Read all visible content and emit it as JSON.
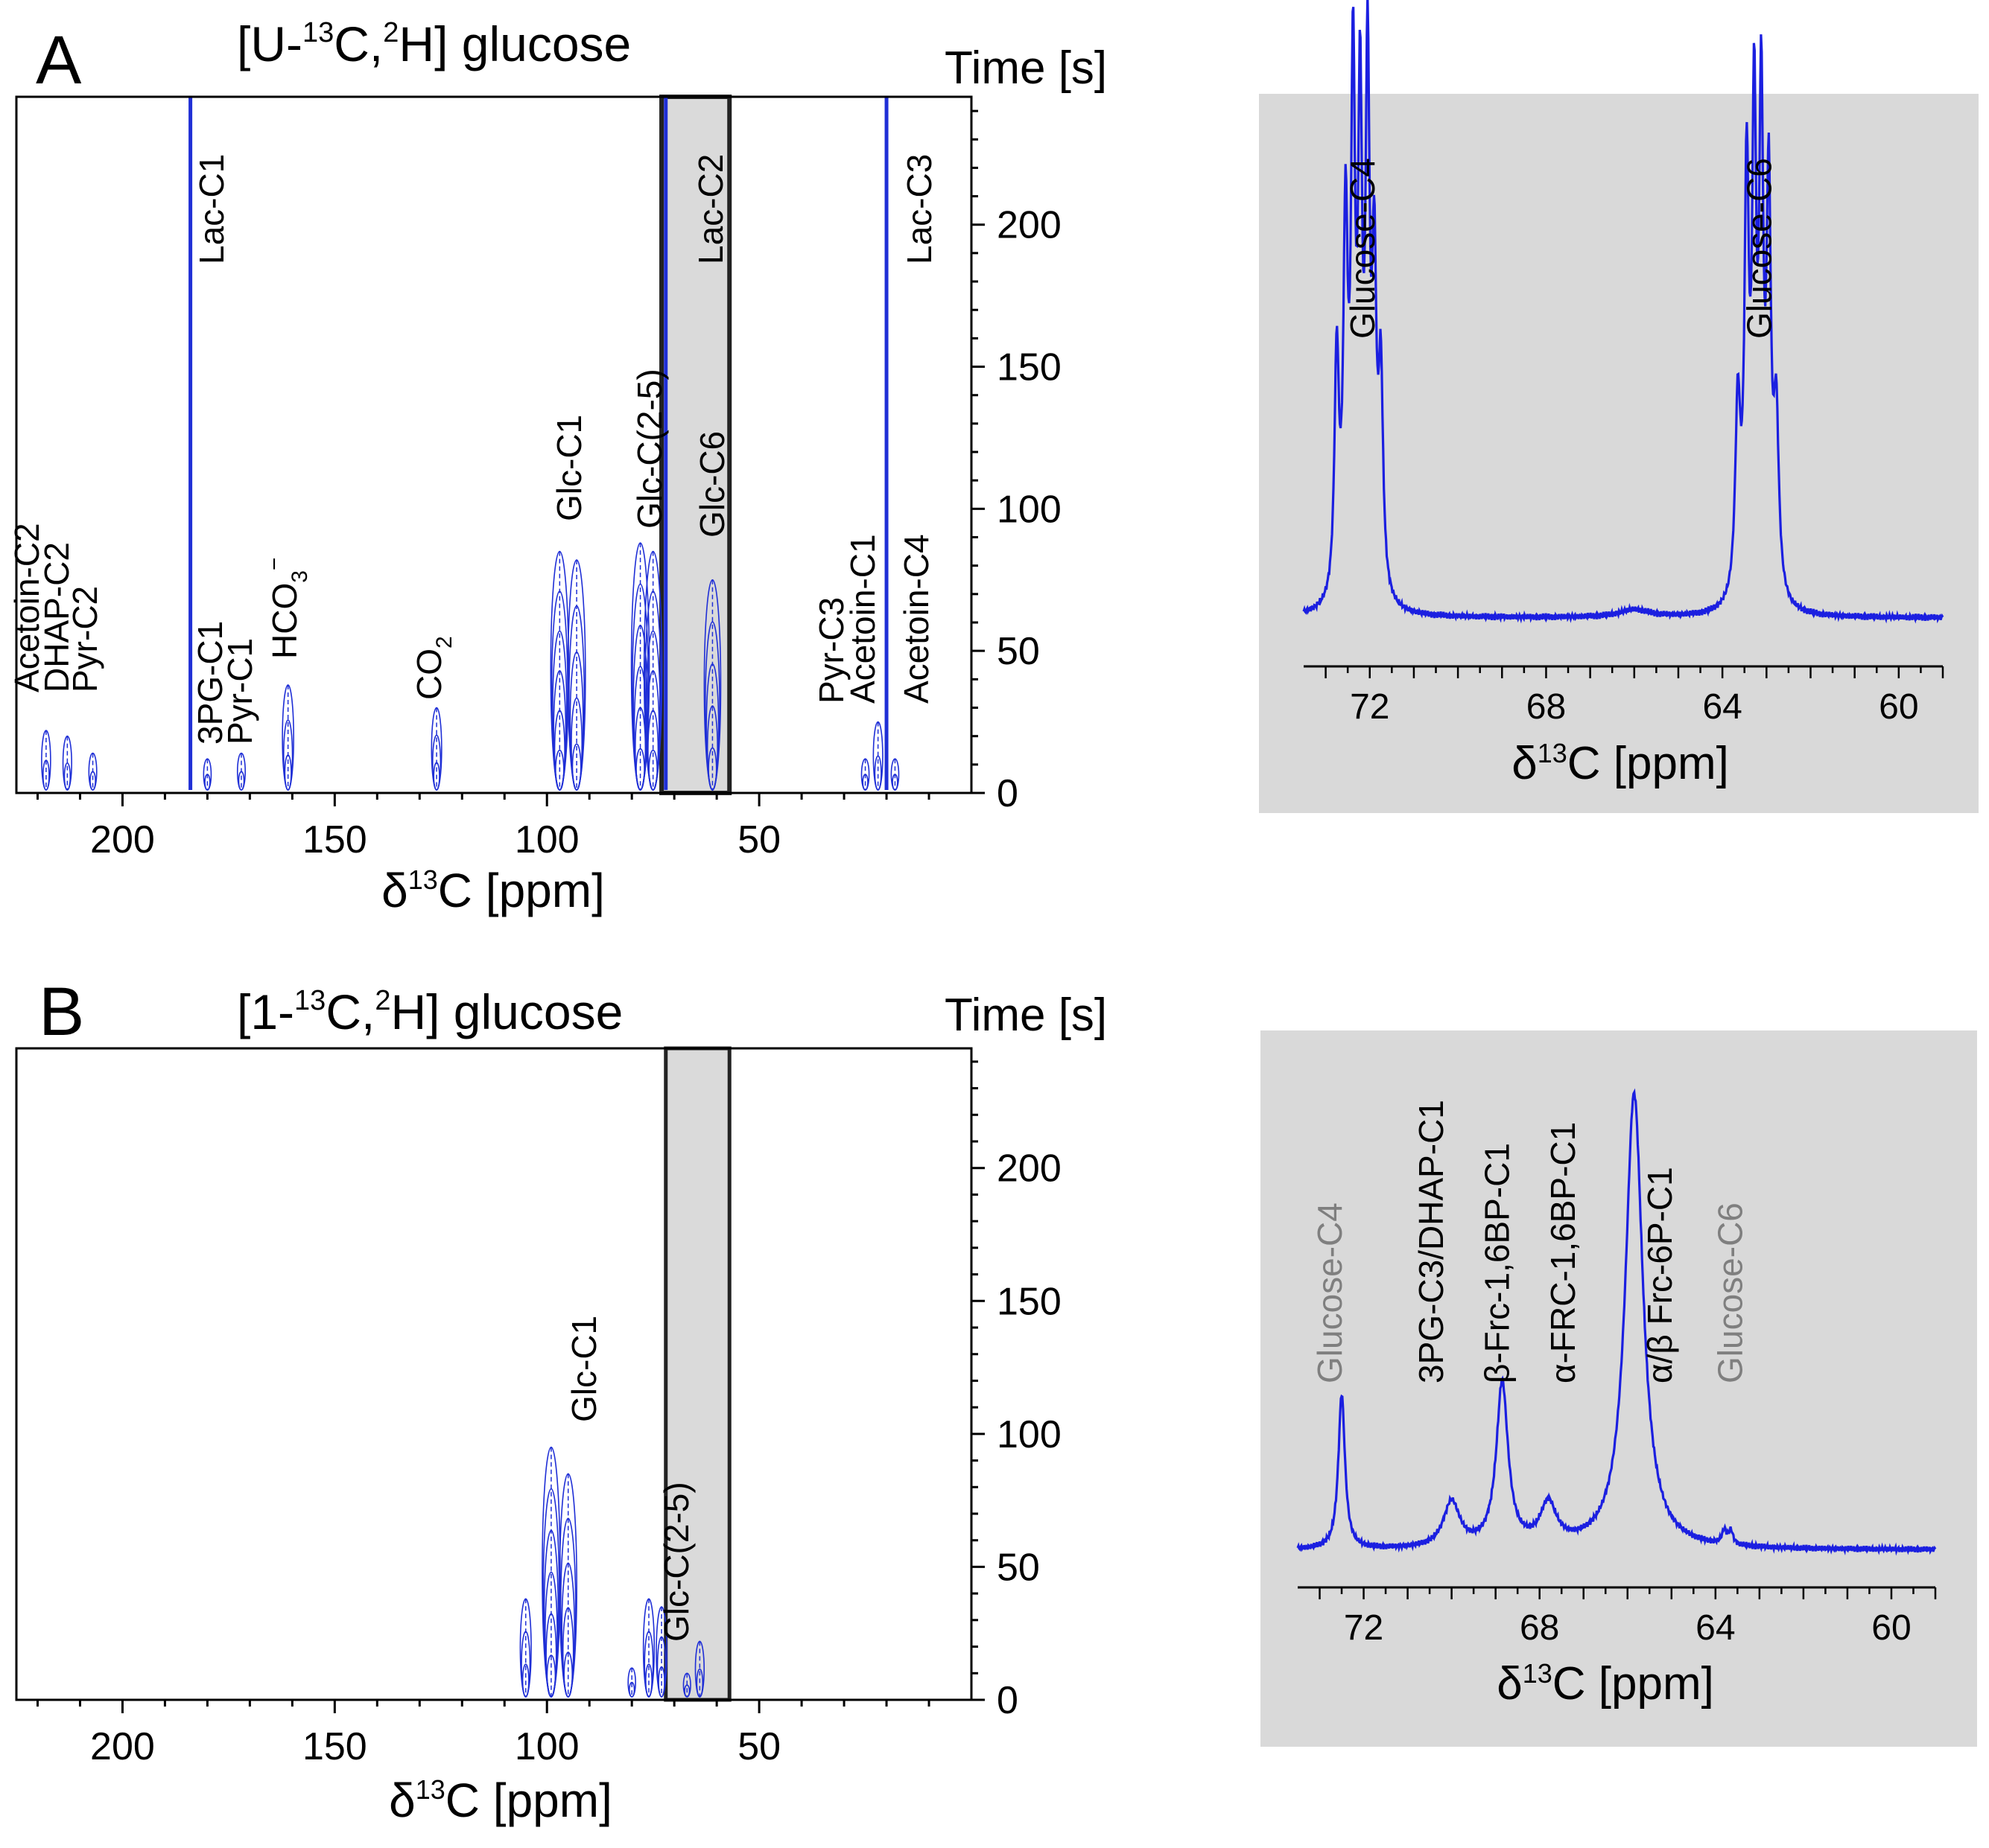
{
  "chart_data": [
    {
      "id": "A-main",
      "type": "scatter",
      "panel_letter": "A",
      "title": {
        "pre": "[U-",
        "sup1": "13",
        "mid": "C,",
        "sup2": "2",
        "post": "H] glucose"
      },
      "ylabel": "Time [s]",
      "xlabel": {
        "pre": "δ",
        "sup": "13",
        "post": "C [ppm]"
      },
      "xlim": [
        225,
        0
      ],
      "ylim": [
        0,
        245
      ],
      "xticks": [
        200,
        150,
        100,
        50
      ],
      "yticks": [
        0,
        50,
        100,
        150,
        200
      ],
      "highlight_ppm": [
        73,
        57
      ],
      "peaks": [
        {
          "ppm": 218,
          "tmax": 22,
          "label": "Acetoin-C2"
        },
        {
          "ppm": 213,
          "tmax": 20,
          "label": "DHAP-C2"
        },
        {
          "ppm": 207,
          "tmax": 14,
          "label": "Pyr-C2"
        },
        {
          "ppm": 184,
          "tmax": 245,
          "label": "Lac-C1"
        },
        {
          "ppm": 180,
          "tmax": 12,
          "label": "3PG-C1"
        },
        {
          "ppm": 172,
          "tmax": 14,
          "label": "Pyr-C1"
        },
        {
          "ppm": 161,
          "tmax": 38,
          "label": "HCO3-"
        },
        {
          "ppm": 126,
          "tmax": 30,
          "label": "CO2"
        },
        {
          "ppm": 97,
          "tmax": 85,
          "label": "Glc-C1"
        },
        {
          "ppm": 93,
          "tmax": 82,
          "label": "Glc-C1"
        },
        {
          "ppm": 78,
          "tmax": 88,
          "label": "Glc-C(2-5)"
        },
        {
          "ppm": 75,
          "tmax": 85,
          "label": "Glc-C(2-5)"
        },
        {
          "ppm": 72,
          "tmax": 245,
          "label": "Lac-C2"
        },
        {
          "ppm": 61,
          "tmax": 75,
          "label": "Glc-C6"
        },
        {
          "ppm": 25,
          "tmax": 12,
          "label": "Pyr-C3"
        },
        {
          "ppm": 22,
          "tmax": 25,
          "label": "Acetoin-C1"
        },
        {
          "ppm": 20,
          "tmax": 245,
          "label": "Lac-C3"
        },
        {
          "ppm": 18,
          "tmax": 12,
          "label": "Acetoin-C4"
        }
      ]
    },
    {
      "id": "A-inset",
      "type": "line",
      "xlabel": {
        "pre": "δ",
        "sup": "13",
        "post": "C [ppm]"
      },
      "xlim": [
        73.5,
        59
      ],
      "xticks": [
        72,
        68,
        64,
        60
      ],
      "labels": [
        {
          "text": "Glucose-C4",
          "ppm": 72.1,
          "color": "#000000"
        },
        {
          "text": "Glucose-C6",
          "ppm": 63.1,
          "color": "#000000"
        }
      ],
      "baseline": 0.04,
      "peaks": [
        {
          "center": 72.75,
          "height": 0.48,
          "width": 0.06
        },
        {
          "center": 72.55,
          "height": 0.72,
          "width": 0.06
        },
        {
          "center": 72.38,
          "height": 1.0,
          "width": 0.055
        },
        {
          "center": 72.22,
          "height": 0.92,
          "width": 0.055
        },
        {
          "center": 72.05,
          "height": 1.0,
          "width": 0.055
        },
        {
          "center": 71.9,
          "height": 0.62,
          "width": 0.06
        },
        {
          "center": 71.75,
          "height": 0.42,
          "width": 0.06
        },
        {
          "center": 63.65,
          "height": 0.38,
          "width": 0.07
        },
        {
          "center": 63.45,
          "height": 0.82,
          "width": 0.06
        },
        {
          "center": 63.28,
          "height": 0.92,
          "width": 0.055
        },
        {
          "center": 63.12,
          "height": 0.93,
          "width": 0.055
        },
        {
          "center": 62.95,
          "height": 0.78,
          "width": 0.06
        },
        {
          "center": 62.78,
          "height": 0.35,
          "width": 0.07
        },
        {
          "center": 66.0,
          "height": 0.015,
          "width": 0.4
        }
      ]
    },
    {
      "id": "B-main",
      "type": "scatter",
      "panel_letter": "B",
      "title": {
        "pre": "[1-",
        "sup1": "13",
        "mid": "C,",
        "sup2": "2",
        "post": "H] glucose"
      },
      "ylabel": "Time [s]",
      "xlabel": {
        "pre": "δ",
        "sup": "13",
        "post": "C [ppm]"
      },
      "xlim": [
        225,
        0
      ],
      "ylim": [
        0,
        245
      ],
      "xticks": [
        200,
        150,
        100,
        50
      ],
      "yticks": [
        0,
        50,
        100,
        150,
        200
      ],
      "highlight_ppm": [
        72,
        57
      ],
      "peaks": [
        {
          "ppm": 105,
          "tmax": 38,
          "label": ""
        },
        {
          "ppm": 99,
          "tmax": 95,
          "label": "Glc-C1"
        },
        {
          "ppm": 95,
          "tmax": 85,
          "label": "Glc-C1"
        },
        {
          "ppm": 80,
          "tmax": 12,
          "label": ""
        },
        {
          "ppm": 76,
          "tmax": 38,
          "label": "Glc-C(2-5)"
        },
        {
          "ppm": 73,
          "tmax": 35,
          "label": "Glc-C(2-5)"
        },
        {
          "ppm": 67,
          "tmax": 10,
          "label": ""
        },
        {
          "ppm": 64,
          "tmax": 22,
          "label": ""
        }
      ],
      "labels": [
        {
          "text": "Glc-C1",
          "ppm": 97
        },
        {
          "text": "Glc-C(2-5)",
          "ppm": 75
        }
      ]
    },
    {
      "id": "B-inset",
      "type": "line",
      "xlabel": {
        "pre": "δ",
        "sup": "13",
        "post": "C [ppm]"
      },
      "xlim": [
        73.5,
        59
      ],
      "xticks": [
        72,
        68,
        64,
        60
      ],
      "labels": [
        {
          "text": "Glucose-C4",
          "ppm": 72.7,
          "color": "#7f7f7f"
        },
        {
          "text": "3PG-C3/DHAP-C1",
          "ppm": 70.4,
          "color": "#000000"
        },
        {
          "text": "β-Frc-1,6BP-C1",
          "ppm": 68.9,
          "color": "#000000"
        },
        {
          "text": "α-FRC-1,6BP-C1",
          "ppm": 67.4,
          "color": "#000000"
        },
        {
          "text": "α/β Frc-6P-C1",
          "ppm": 65.2,
          "color": "#000000"
        },
        {
          "text": "Glucose-C6",
          "ppm": 63.6,
          "color": "#7f7f7f"
        }
      ],
      "baseline": 0.02,
      "peaks": [
        {
          "center": 72.5,
          "height": 0.34,
          "width": 0.09
        },
        {
          "center": 70.0,
          "height": 0.1,
          "width": 0.22
        },
        {
          "center": 68.85,
          "height": 0.36,
          "width": 0.16
        },
        {
          "center": 67.8,
          "height": 0.09,
          "width": 0.22
        },
        {
          "center": 65.85,
          "height": 1.0,
          "width": 0.24
        },
        {
          "center": 63.8,
          "height": 0.03,
          "width": 0.06
        },
        {
          "center": 63.65,
          "height": 0.03,
          "width": 0.06
        }
      ]
    }
  ]
}
